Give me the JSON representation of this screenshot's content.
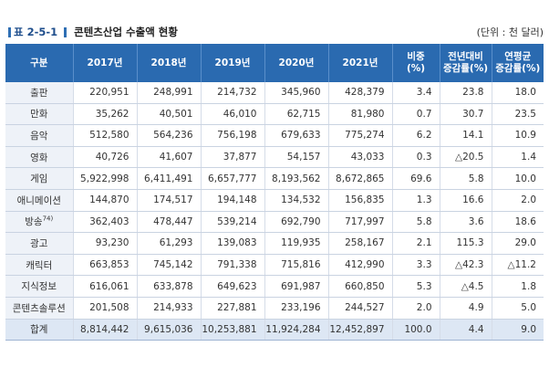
{
  "title": {
    "label": "표 2-5-1",
    "text": "콘텐츠산업 수출액 현황",
    "unit": "(단위 : 천 달러)"
  },
  "table": {
    "headers": [
      "구분",
      "2017년",
      "2018년",
      "2019년",
      "2020년",
      "2021년",
      "비중\n(%)",
      "전년대비\n증감률(%)",
      "연평균\n증감률(%)"
    ],
    "rows": [
      {
        "name": "출판",
        "values": [
          "220,951",
          "248,991",
          "214,732",
          "345,960",
          "428,379",
          "3.4",
          "23.8",
          "18.0"
        ]
      },
      {
        "name": "만화",
        "values": [
          "35,262",
          "40,501",
          "46,010",
          "62,715",
          "81,980",
          "0.7",
          "30.7",
          "23.5"
        ]
      },
      {
        "name": "음악",
        "values": [
          "512,580",
          "564,236",
          "756,198",
          "679,633",
          "775,274",
          "6.2",
          "14.1",
          "10.9"
        ]
      },
      {
        "name": "영화",
        "values": [
          "40,726",
          "41,607",
          "37,877",
          "54,157",
          "43,033",
          "0.3",
          "△20.5",
          "1.4"
        ]
      },
      {
        "name": "게임",
        "values": [
          "5,922,998",
          "6,411,491",
          "6,657,777",
          "8,193,562",
          "8,672,865",
          "69.6",
          "5.8",
          "10.0"
        ]
      },
      {
        "name": "애니메이션",
        "values": [
          "144,870",
          "174,517",
          "194,148",
          "134,532",
          "156,835",
          "1.3",
          "16.6",
          "2.0"
        ]
      },
      {
        "name": "방송",
        "note": "74)",
        "values": [
          "362,403",
          "478,447",
          "539,214",
          "692,790",
          "717,997",
          "5.8",
          "3.6",
          "18.6"
        ]
      },
      {
        "name": "광고",
        "values": [
          "93,230",
          "61,293",
          "139,083",
          "119,935",
          "258,167",
          "2.1",
          "115.3",
          "29.0"
        ]
      },
      {
        "name": "캐릭터",
        "values": [
          "663,853",
          "745,142",
          "791,338",
          "715,816",
          "412,990",
          "3.3",
          "△42.3",
          "△11.2"
        ]
      },
      {
        "name": "지식정보",
        "values": [
          "616,061",
          "633,878",
          "649,623",
          "691,987",
          "660,850",
          "5.3",
          "△4.5",
          "1.8"
        ]
      },
      {
        "name": "콘텐츠솔루션",
        "values": [
          "201,508",
          "214,933",
          "227,881",
          "233,196",
          "244,527",
          "2.0",
          "4.9",
          "5.0"
        ]
      }
    ],
    "total": {
      "name": "합계",
      "values": [
        "8,814,442",
        "9,615,036",
        "10,253,881",
        "11,924,284",
        "12,452,897",
        "100.0",
        "4.4",
        "9.0"
      ]
    }
  }
}
